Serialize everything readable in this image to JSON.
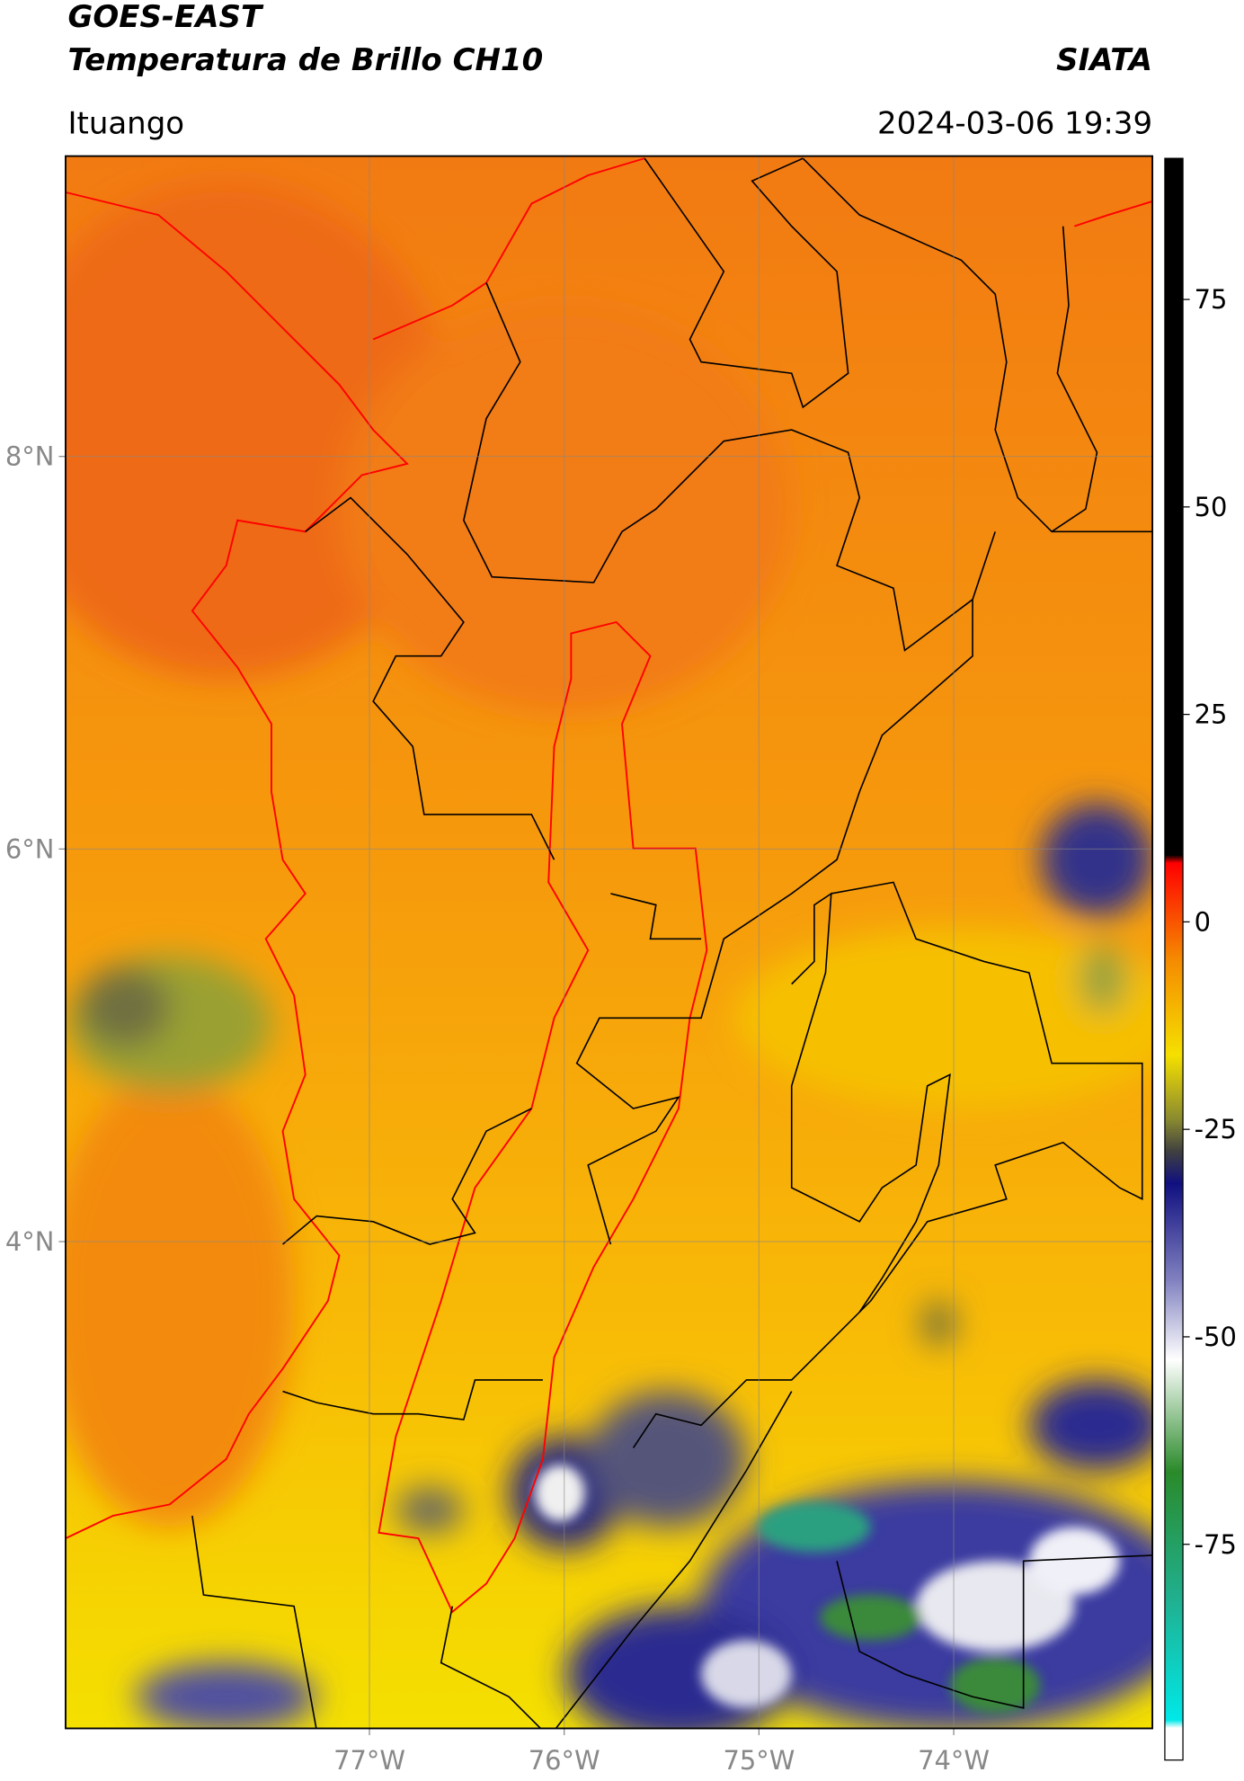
{
  "header": {
    "title": "GOES-EAST",
    "subtitle": "Temperatura de Brillo CH10",
    "source": "SIATA",
    "location": "Ituango",
    "datetime": "2024-03-06 19:39"
  },
  "map": {
    "xlim": [
      -78.56,
      -72.98
    ],
    "ylim": [
      1.52,
      9.53
    ],
    "xticks": [
      {
        "value": -77,
        "label": "77°W"
      },
      {
        "value": -76,
        "label": "76°W"
      },
      {
        "value": -75,
        "label": "75°W"
      },
      {
        "value": -74,
        "label": "74°W"
      }
    ],
    "yticks": [
      {
        "value": 8,
        "label": "8°N"
      },
      {
        "value": 6,
        "label": "6°N"
      },
      {
        "value": 4,
        "label": "4°N"
      }
    ]
  },
  "colorbar": {
    "lim": [
      -101,
      92
    ],
    "ticks": [
      75,
      50,
      25,
      0,
      -25,
      -50,
      -75
    ]
  }
}
